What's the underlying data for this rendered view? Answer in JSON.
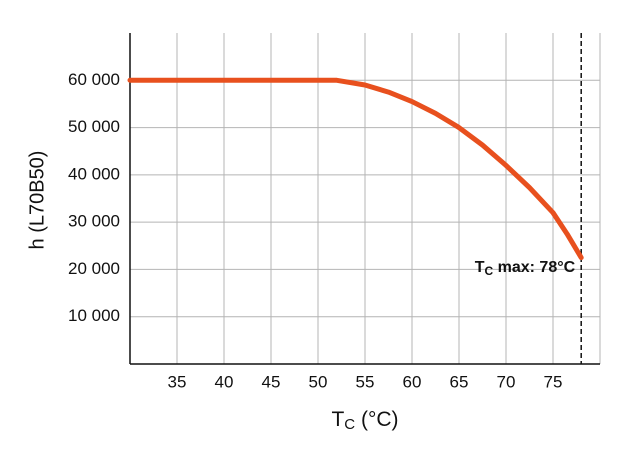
{
  "chart_data": {
    "type": "line",
    "y_label": "h (L70B50)",
    "x_label": {
      "base": "T",
      "sub": "C",
      "rest": " (°C)"
    },
    "x": [
      30,
      52,
      55,
      57.5,
      60,
      62.5,
      65,
      67.5,
      70,
      72.5,
      75,
      76.5,
      78
    ],
    "series": [
      {
        "color": "#e8501e",
        "values": [
          60000,
          60000,
          59000,
          57500,
          55500,
          53000,
          50000,
          46300,
          42000,
          37300,
          32000,
          27500,
          22500
        ]
      }
    ],
    "xlim": [
      30,
      80
    ],
    "xticks": [
      35,
      40,
      45,
      50,
      55,
      60,
      65,
      70,
      75
    ],
    "ylim": [
      0,
      70000
    ],
    "yticks": [
      {
        "value": 10000,
        "label": "10 000"
      },
      {
        "value": 20000,
        "label": "20 000"
      },
      {
        "value": 30000,
        "label": "30 000"
      },
      {
        "value": 40000,
        "label": "40 000"
      },
      {
        "value": 50000,
        "label": "50 000"
      },
      {
        "value": 60000,
        "label": "60 000"
      }
    ],
    "grid": true,
    "max_tc": 78,
    "annotation": {
      "base": "T",
      "sub": "C",
      "rest": " max: 78°C"
    }
  }
}
